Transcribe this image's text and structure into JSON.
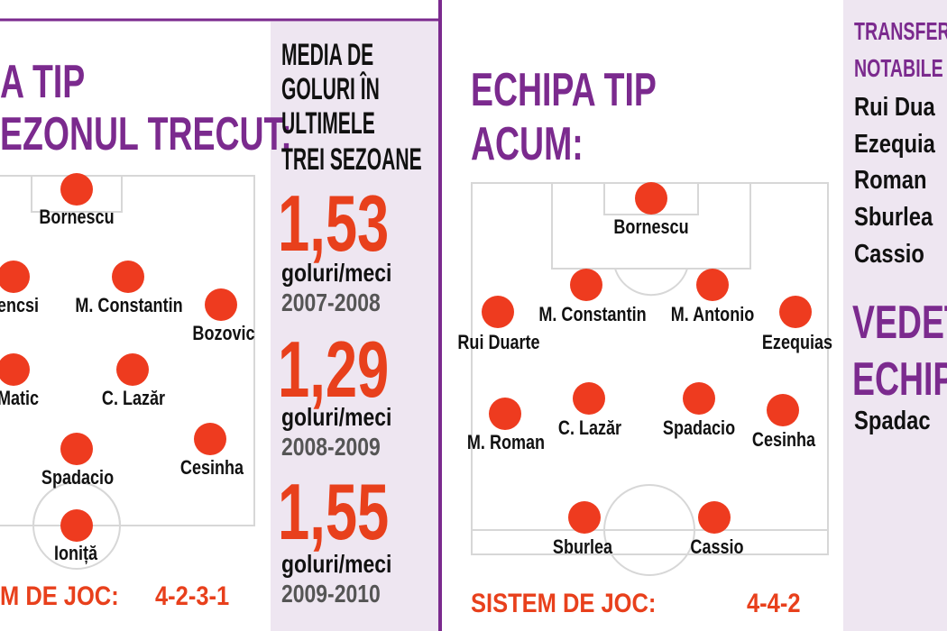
{
  "left_team": {
    "title": [
      "A TIP",
      "EZONUL TRECUT:"
    ],
    "players": [
      "Bornescu",
      "encsi",
      "M. Constantin",
      "Bozovic",
      "Matic",
      "C. Lazăr",
      "Spadacio",
      "Cesinha",
      "Ioniță"
    ],
    "system_label": "M DE JOC:",
    "system": "4-2-3-1"
  },
  "goals_average": {
    "title": [
      "MEDIA DE",
      "GOLURI ÎN",
      "ULTIMELE",
      "TREI SEZOANE"
    ],
    "seasons": [
      {
        "value": "1,53",
        "unit": "goluri/meci",
        "season": "2007-2008"
      },
      {
        "value": "1,29",
        "unit": "goluri/meci",
        "season": "2008-2009"
      },
      {
        "value": "1,55",
        "unit": "goluri/meci",
        "season": "2009-2010"
      }
    ]
  },
  "right_team": {
    "title": [
      "ECHIPA TIP",
      "ACUM:"
    ],
    "players": [
      "Bornescu",
      "M. Constantin",
      "M. Antonio",
      "Rui Duarte",
      "Ezequias",
      "M. Roman",
      "C. Lazăr",
      "Spadacio",
      "Cesinha",
      "Sburlea",
      "Cassio"
    ],
    "system_label": "SISTEM DE JOC:",
    "system": "4-4-2"
  },
  "transfers": {
    "title": [
      "TRANSFER",
      "NOTABILE"
    ],
    "players": [
      "Rui Dua",
      "Ezequia",
      "Roman",
      "Sburlea",
      "Cassio"
    ]
  },
  "star": {
    "title": [
      "VEDET",
      "ECHIP"
    ],
    "player": "Spadac"
  }
}
